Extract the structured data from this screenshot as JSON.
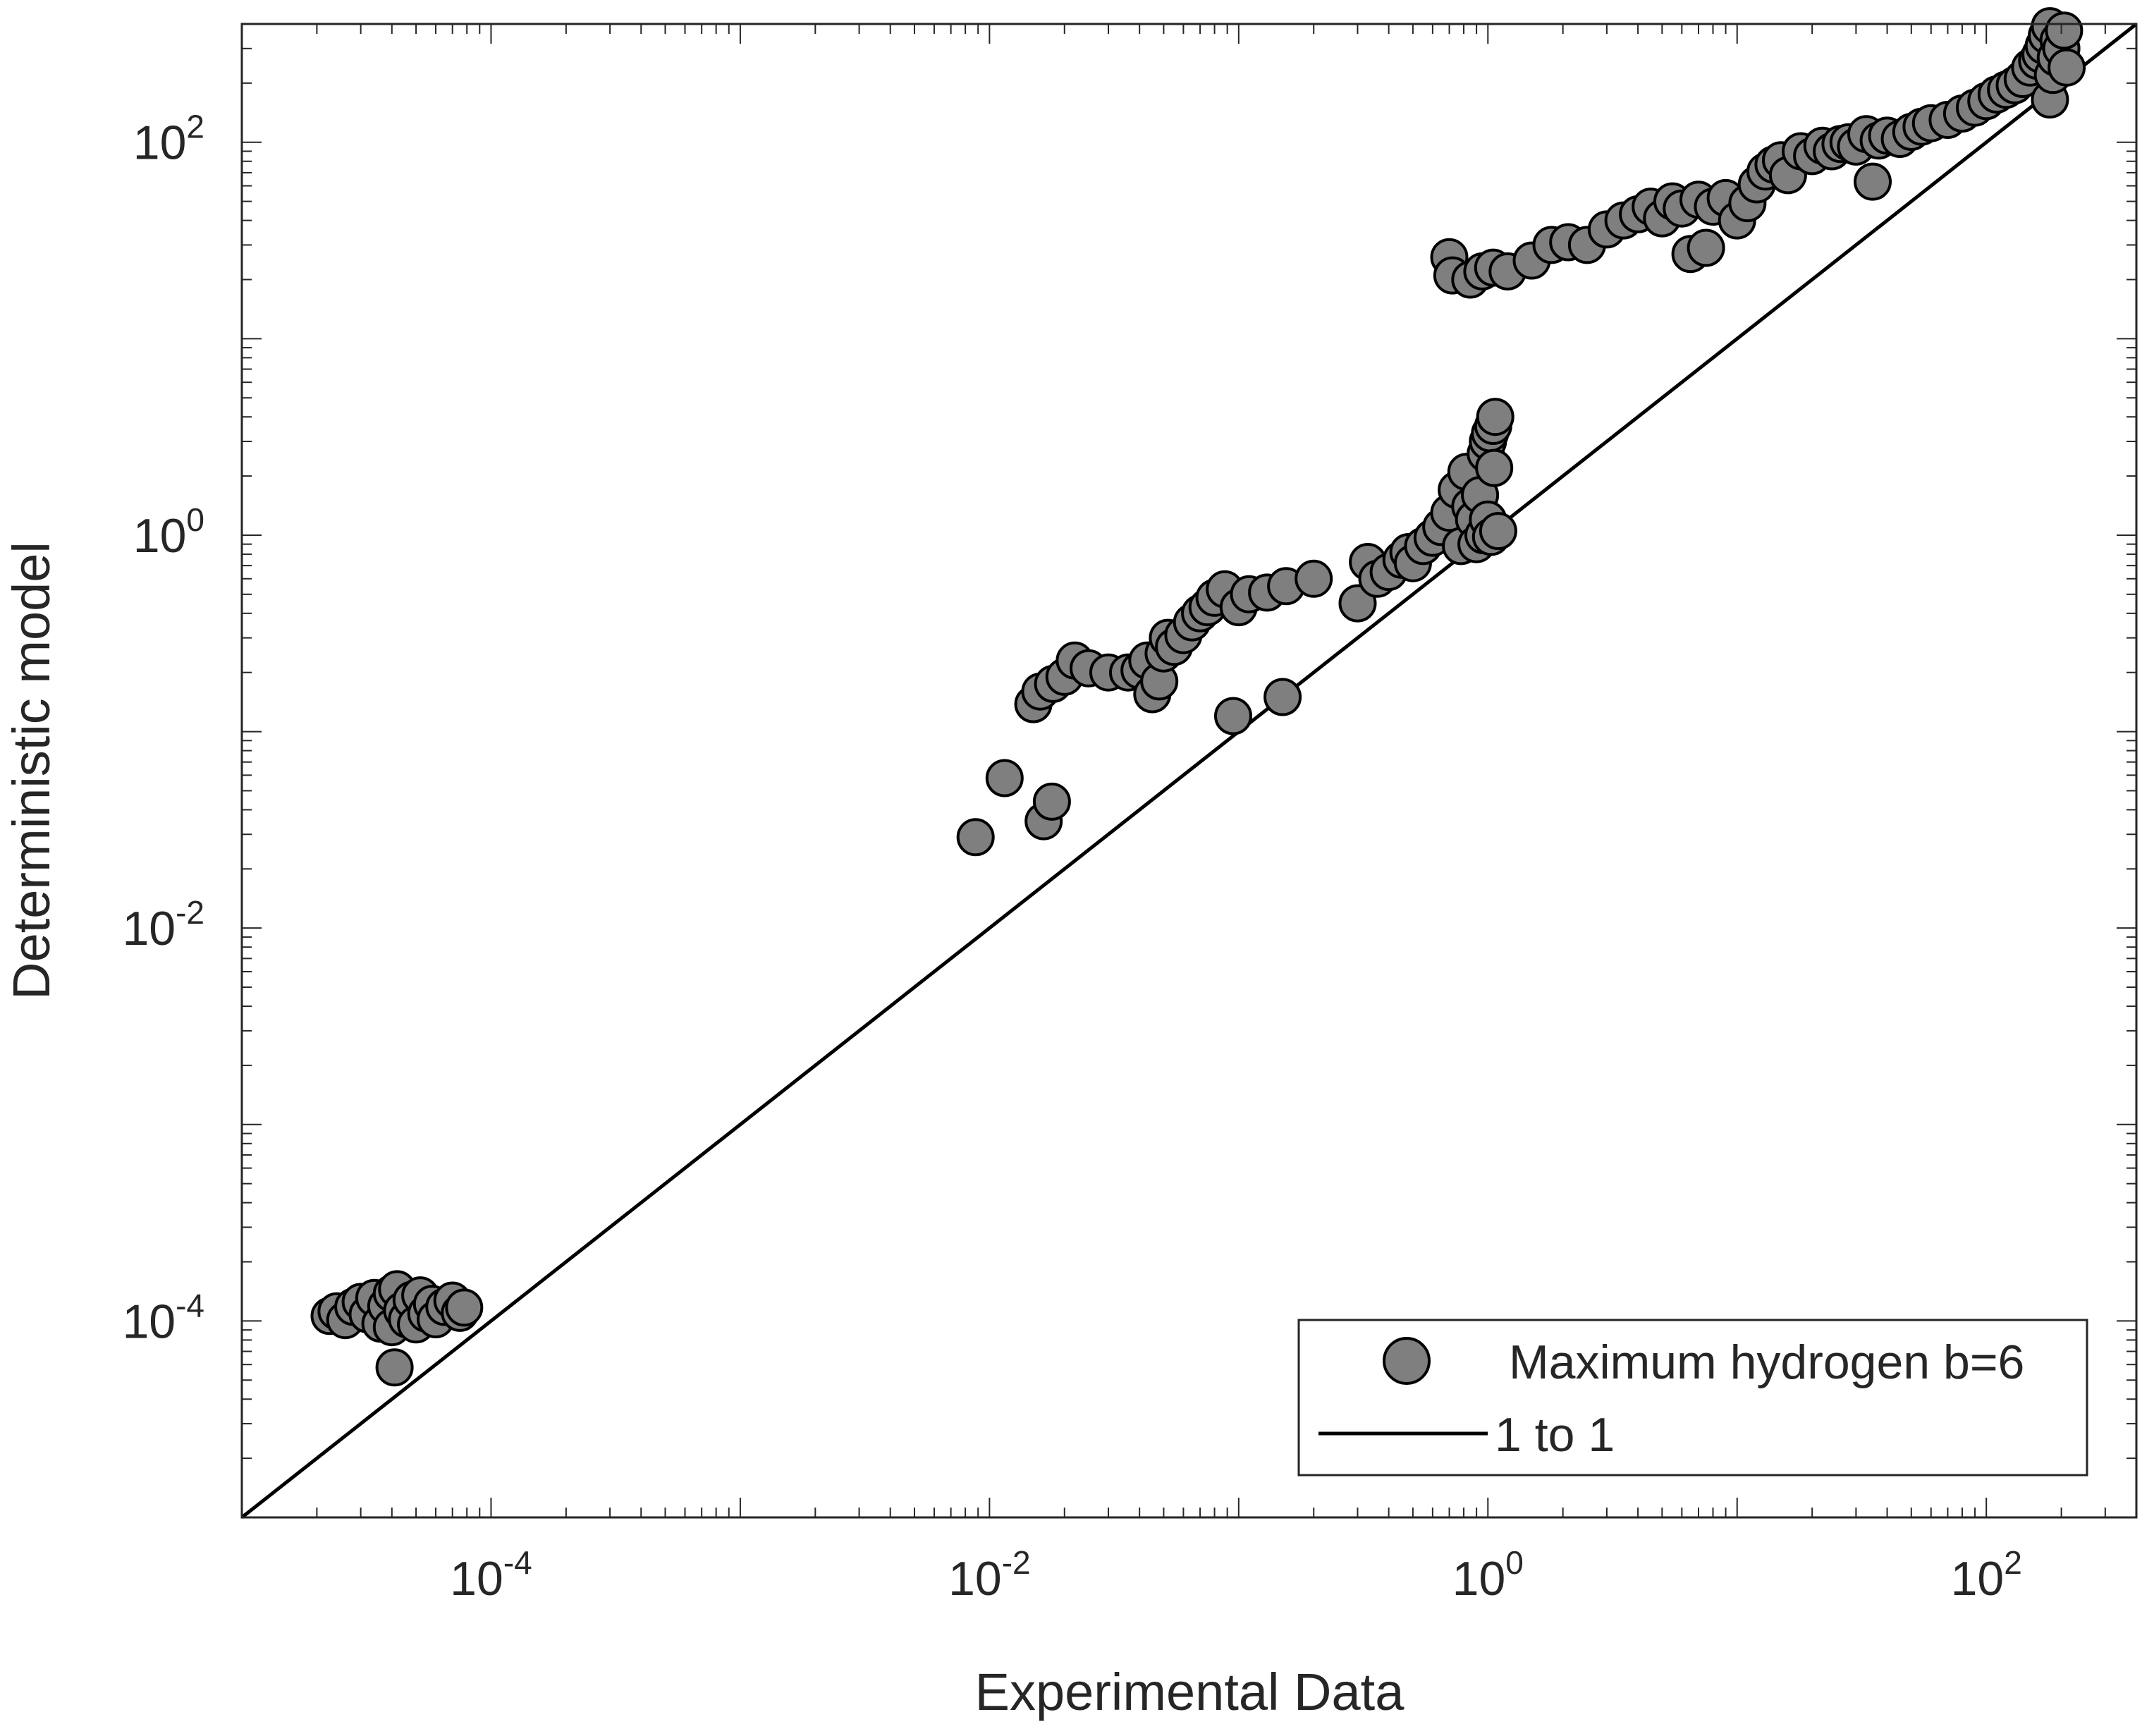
{
  "chart_data": {
    "type": "scatter",
    "title": "",
    "xlabel": "Experimental Data",
    "ylabel": "Deterministic model",
    "xscale": "log",
    "yscale": "log",
    "xlim": [
      1e-05,
      400
    ],
    "ylim": [
      1e-05,
      400
    ],
    "x_ticks": [
      {
        "value": 0.0001,
        "base": "10",
        "exp": "-4"
      },
      {
        "value": 0.01,
        "base": "10",
        "exp": "-2"
      },
      {
        "value": 1,
        "base": "10",
        "exp": "0"
      },
      {
        "value": 100,
        "base": "10",
        "exp": "2"
      }
    ],
    "y_ticks": [
      {
        "value": 0.0001,
        "base": "10",
        "exp": "-4"
      },
      {
        "value": 0.01,
        "base": "10",
        "exp": "-2"
      },
      {
        "value": 1,
        "base": "10",
        "exp": "0"
      },
      {
        "value": 100,
        "base": "10",
        "exp": "2"
      }
    ],
    "legend": {
      "location": "bottom-right",
      "entries": [
        {
          "label": "Maximum hydrogen b=6",
          "kind": "marker"
        },
        {
          "label": "1 to 1",
          "kind": "line"
        }
      ]
    },
    "series": [
      {
        "name": "Maximum hydrogen b=6",
        "marker_color": "#7f7f7f",
        "edge_color": "#000000",
        "points": [
          [
            2.25e-05,
            0.000106
          ],
          [
            2.4e-05,
            0.000112
          ],
          [
            2.6e-05,
            0.000101
          ],
          [
            2.8e-05,
            0.000118
          ],
          [
            3e-05,
            0.000125
          ],
          [
            3.2e-05,
            0.000108
          ],
          [
            3.4e-05,
            0.000131
          ],
          [
            3.6e-05,
            9.7e-05
          ],
          [
            3.8e-05,
            0.000119
          ],
          [
            4e-05,
            0.000138
          ],
          [
            4e-05,
            9.3e-05
          ],
          [
            4.1e-05,
            5.8e-05
          ],
          [
            4.2e-05,
            0.000145
          ],
          [
            4.4e-05,
            0.000113
          ],
          [
            4.6e-05,
            0.000102
          ],
          [
            4.8e-05,
            0.000128
          ],
          [
            5e-05,
            9.6e-05
          ],
          [
            5.2e-05,
            0.000135
          ],
          [
            5.5e-05,
            0.000109
          ],
          [
            5.8e-05,
            0.000122
          ],
          [
            6e-05,
            0.000102
          ],
          [
            6.5e-05,
            0.000118
          ],
          [
            7e-05,
            0.000127
          ],
          [
            7.5e-05,
            0.00011
          ],
          [
            7.8e-05,
            0.000117
          ],
          [
            0.0088,
            0.029
          ],
          [
            0.0115,
            0.058
          ],
          [
            0.015,
            0.138
          ],
          [
            0.0165,
            0.035
          ],
          [
            0.0178,
            0.044
          ],
          [
            0.016,
            0.16
          ],
          [
            0.018,
            0.175
          ],
          [
            0.02,
            0.19
          ],
          [
            0.022,
            0.23
          ],
          [
            0.025,
            0.21
          ],
          [
            0.03,
            0.2
          ],
          [
            0.036,
            0.2
          ],
          [
            0.04,
            0.205
          ],
          [
            0.043,
            0.23
          ],
          [
            0.045,
            0.155
          ],
          [
            0.048,
            0.18
          ],
          [
            0.05,
            0.25
          ],
          [
            0.052,
            0.3
          ],
          [
            0.055,
            0.27
          ],
          [
            0.06,
            0.31
          ],
          [
            0.065,
            0.36
          ],
          [
            0.07,
            0.4
          ],
          [
            0.075,
            0.43
          ],
          [
            0.08,
            0.48
          ],
          [
            0.088,
            0.53
          ],
          [
            0.095,
            0.12
          ],
          [
            0.1,
            0.43
          ],
          [
            0.11,
            0.5
          ],
          [
            0.13,
            0.51
          ],
          [
            0.15,
            0.15
          ],
          [
            0.155,
            0.55
          ],
          [
            0.2,
            0.6
          ],
          [
            0.3,
            0.45
          ],
          [
            0.33,
            0.73
          ],
          [
            0.36,
            0.6
          ],
          [
            0.4,
            0.65
          ],
          [
            0.45,
            0.75
          ],
          [
            0.48,
            0.82
          ],
          [
            0.5,
            0.72
          ],
          [
            0.55,
            0.88
          ],
          [
            0.6,
            0.97
          ],
          [
            0.65,
            1.1
          ],
          [
            0.7,
            1.3
          ],
          [
            0.75,
            1.7
          ],
          [
            0.78,
            0.88
          ],
          [
            0.82,
            2.1
          ],
          [
            0.85,
            1.4
          ],
          [
            0.88,
            1.2
          ],
          [
            0.9,
            0.9
          ],
          [
            0.93,
            1.6
          ],
          [
            0.96,
            1.0
          ],
          [
            0.98,
            2.6
          ],
          [
            1.0,
            3.0
          ],
          [
            1.0,
            1.2
          ],
          [
            1.02,
            3.3
          ],
          [
            1.03,
            0.98
          ],
          [
            1.05,
            3.6
          ],
          [
            1.06,
            2.2
          ],
          [
            1.07,
            4.0
          ],
          [
            1.1,
            1.05
          ],
          [
            0.7,
            26
          ],
          [
            0.72,
            21
          ],
          [
            0.85,
            20
          ],
          [
            0.95,
            22
          ],
          [
            1.05,
            23
          ],
          [
            1.2,
            22
          ],
          [
            1.5,
            25
          ],
          [
            1.8,
            30
          ],
          [
            2.1,
            31
          ],
          [
            2.5,
            30
          ],
          [
            3.0,
            36
          ],
          [
            3.5,
            40
          ],
          [
            4.0,
            43
          ],
          [
            4.5,
            47
          ],
          [
            5.0,
            41
          ],
          [
            5.5,
            50
          ],
          [
            6.0,
            46
          ],
          [
            6.5,
            27
          ],
          [
            7.0,
            51
          ],
          [
            7.5,
            29
          ],
          [
            8.0,
            47
          ],
          [
            9.0,
            52
          ],
          [
            10,
            40
          ],
          [
            11,
            49
          ],
          [
            12,
            61
          ],
          [
            13,
            71
          ],
          [
            14,
            77
          ],
          [
            15,
            81
          ],
          [
            16,
            68
          ],
          [
            18,
            90
          ],
          [
            20,
            85
          ],
          [
            22,
            96
          ],
          [
            24,
            90
          ],
          [
            26,
            98
          ],
          [
            28,
            100
          ],
          [
            30,
            95
          ],
          [
            33,
            110
          ],
          [
            35,
            63
          ],
          [
            37,
            102
          ],
          [
            40,
            108
          ],
          [
            45,
            104
          ],
          [
            50,
            113
          ],
          [
            55,
            120
          ],
          [
            60,
            125
          ],
          [
            70,
            130
          ],
          [
            80,
            140
          ],
          [
            90,
            150
          ],
          [
            100,
            162
          ],
          [
            110,
            175
          ],
          [
            120,
            185
          ],
          [
            130,
            195
          ],
          [
            140,
            210
          ],
          [
            150,
            240
          ],
          [
            160,
            260
          ],
          [
            165,
            280
          ],
          [
            170,
            310
          ],
          [
            175,
            350
          ],
          [
            180,
            390
          ],
          [
            180,
            165
          ],
          [
            185,
            220
          ],
          [
            190,
            270
          ],
          [
            195,
            330
          ],
          [
            200,
            300
          ],
          [
            205,
            370
          ],
          [
            210,
            240
          ]
        ]
      },
      {
        "name": "1 to 1",
        "line_color": "#000000",
        "x": [
          1e-05,
          400
        ],
        "y": [
          1e-05,
          400
        ]
      }
    ]
  }
}
